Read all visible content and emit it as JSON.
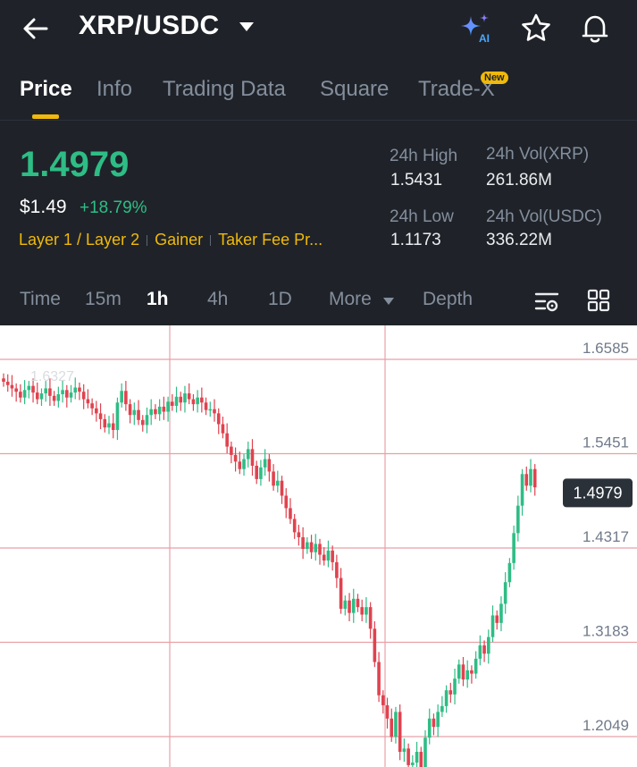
{
  "header": {
    "title": "XRP/USDC",
    "ai_badge": "AI",
    "icons": [
      "back-arrow-icon",
      "chevron-down-icon",
      "ai-sparkle-icon",
      "star-icon",
      "bell-icon"
    ]
  },
  "tabs": [
    {
      "label": "Price",
      "active": true
    },
    {
      "label": "Info"
    },
    {
      "label": "Trading Data"
    },
    {
      "label": "Square"
    },
    {
      "label": "Trade-X",
      "badge": "New"
    }
  ],
  "summary": {
    "last_price": "1.4979",
    "usd_price": "$1.49",
    "change": "+18.79%",
    "tags": [
      "Layer 1 / Layer 2",
      "Gainer",
      "Taker Fee Pr..."
    ]
  },
  "stats": {
    "high_label": "24h High",
    "high": "1.5431",
    "low_label": "24h Low",
    "low": "1.1173",
    "vol_base_label": "24h Vol(XRP)",
    "vol_base": "261.86M",
    "vol_quote_label": "24h Vol(USDC)",
    "vol_quote": "336.22M"
  },
  "timeframes": {
    "time": "Time",
    "m15": "15m",
    "h1": "1h",
    "h4": "4h",
    "d1": "1D",
    "more": "More",
    "depth": "Depth",
    "active": "1h"
  },
  "colors": {
    "up": "#2ebd85",
    "down": "#e0424f",
    "accent": "#f0b90b",
    "gridline": "#e8a0a6",
    "bg": "#1f2329"
  },
  "chart_data": {
    "type": "candlestick",
    "y_ticks": [
      "1.6585",
      "1.5451",
      "1.4317",
      "1.3183",
      "1.2049"
    ],
    "y_tick_values": [
      1.6585,
      1.5451,
      1.4317,
      1.3183,
      1.2049
    ],
    "current_price_label": "1.4979",
    "current_price": 1.4979,
    "high_marker": "1.6327",
    "closes": [
      1.623,
      1.619,
      1.615,
      1.611,
      1.604,
      1.613,
      1.618,
      1.61,
      1.602,
      1.609,
      1.615,
      1.606,
      1.6,
      1.608,
      1.613,
      1.604,
      1.61,
      1.616,
      1.611,
      1.602,
      1.597,
      1.591,
      1.585,
      1.578,
      1.568,
      1.573,
      1.565,
      1.598,
      1.612,
      1.596,
      1.583,
      1.589,
      1.577,
      1.571,
      1.583,
      1.59,
      1.584,
      1.593,
      1.587,
      1.599,
      1.594,
      1.605,
      1.598,
      1.609,
      1.602,
      1.596,
      1.604,
      1.598,
      1.589,
      1.59,
      1.585,
      1.572,
      1.561,
      1.545,
      1.535,
      1.527,
      1.518,
      1.53,
      1.542,
      1.522,
      1.506,
      1.52,
      1.53,
      1.515,
      1.498,
      1.504,
      1.486,
      1.471,
      1.458,
      1.442,
      1.436,
      1.422,
      1.43,
      1.418,
      1.428,
      1.415,
      1.408,
      1.42,
      1.406,
      1.387,
      1.35,
      1.36,
      1.345,
      1.362,
      1.352,
      1.343,
      1.352,
      1.326,
      1.286,
      1.246,
      1.234,
      1.218,
      1.196,
      1.226,
      1.178,
      1.182,
      1.162,
      1.165,
      1.178,
      1.158,
      1.195,
      1.218,
      1.208,
      1.226,
      1.233,
      1.252,
      1.247,
      1.266,
      1.283,
      1.265,
      1.276,
      1.272,
      1.29,
      1.306,
      1.296,
      1.316,
      1.342,
      1.333,
      1.356,
      1.382,
      1.405,
      1.441,
      1.474,
      1.512,
      1.498,
      1.518,
      1.496
    ]
  }
}
